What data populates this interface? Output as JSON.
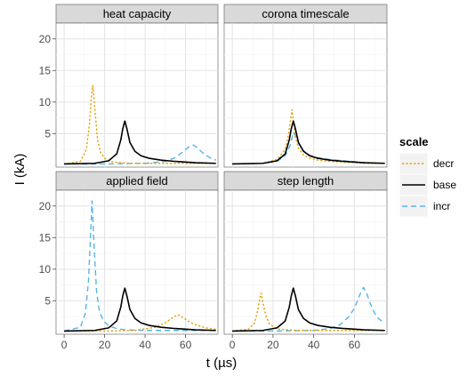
{
  "chart_data": {
    "type": "line",
    "xlabel": "t  (µs)",
    "ylabel": "I (kA)",
    "xlim": [
      -4,
      76
    ],
    "ylim": [
      -0.3,
      22.5
    ],
    "x_ticks": [
      0,
      20,
      40,
      60
    ],
    "y_ticks": [
      5,
      10,
      15,
      20
    ],
    "x_tick_labels": [
      "0",
      "20",
      "40",
      "60"
    ],
    "y_tick_labels": [
      "5",
      "10",
      "15",
      "20"
    ],
    "grid": true,
    "legend": {
      "title": "scale",
      "placement": "right",
      "entries": [
        "decr",
        "base",
        "incr"
      ]
    },
    "series_styles": {
      "decr": {
        "color": "#E69F00",
        "dash": "dotted"
      },
      "base": {
        "color": "#000000",
        "dash": "solid"
      },
      "incr": {
        "color": "#56B4E9",
        "dash": "dashed"
      }
    },
    "panels": [
      {
        "title": "heat capacity",
        "series": [
          {
            "name": "decr",
            "x": [
              0,
              8,
              11,
              12.5,
              13.5,
              14.2,
              15,
              16.5,
              18,
              20,
              23,
              27,
              32,
              40,
              50,
              60,
              70,
              75
            ],
            "y": [
              0.2,
              0.6,
              2.5,
              6.5,
              11.0,
              12.6,
              9.5,
              4.0,
              2.0,
              1.1,
              0.6,
              0.4,
              0.3,
              0.3,
              0.3,
              0.3,
              0.3,
              0.3
            ]
          },
          {
            "name": "base",
            "x": [
              0,
              15,
              22,
              26,
              28,
              29,
              30,
              31,
              32.5,
              35,
              38,
              42,
              48,
              55,
              65,
              75
            ],
            "y": [
              0.2,
              0.3,
              0.7,
              1.8,
              4.0,
              5.8,
              7.0,
              5.8,
              3.6,
              2.2,
              1.5,
              1.1,
              0.8,
              0.6,
              0.4,
              0.3
            ]
          },
          {
            "name": "incr",
            "x": [
              0,
              20,
              40,
              50,
              55,
              59,
              62,
              64,
              66,
              69,
              72,
              75
            ],
            "y": [
              0.2,
              0.2,
              0.3,
              0.6,
              1.2,
              2.2,
              3.0,
              3.2,
              2.7,
              1.8,
              1.2,
              0.8
            ]
          }
        ]
      },
      {
        "title": "corona timescale",
        "series": [
          {
            "name": "decr",
            "x": [
              0,
              15,
              22,
              26,
              27.5,
              28.5,
              29.3,
              30,
              31,
              32.5,
              35,
              38,
              42,
              48,
              55,
              65,
              75
            ],
            "y": [
              0.2,
              0.3,
              0.9,
              2.5,
              4.6,
              6.8,
              8.8,
              7.2,
              4.5,
              2.7,
              1.6,
              1.1,
              0.8,
              0.6,
              0.5,
              0.3,
              0.3
            ]
          },
          {
            "name": "base",
            "x": [
              0,
              15,
              22,
              26,
              28,
              29,
              30,
              31,
              32.5,
              35,
              38,
              42,
              48,
              55,
              65,
              75
            ],
            "y": [
              0.2,
              0.3,
              0.7,
              1.8,
              4.0,
              5.8,
              7.0,
              5.8,
              3.6,
              2.2,
              1.5,
              1.1,
              0.8,
              0.6,
              0.4,
              0.3
            ]
          },
          {
            "name": "incr",
            "x": [
              0,
              15,
              22,
              26,
              28.5,
              30,
              31.5,
              33,
              35,
              38,
              42,
              48,
              55,
              65,
              75
            ],
            "y": [
              0.2,
              0.3,
              0.6,
              1.5,
              3.2,
              5.2,
              4.4,
              3.2,
              2.3,
              1.6,
              1.2,
              0.9,
              0.7,
              0.4,
              0.3
            ]
          }
        ]
      },
      {
        "title": "applied field",
        "series": [
          {
            "name": "decr",
            "x": [
              0,
              20,
              35,
              45,
              50,
              53,
              56,
              59,
              62,
              66,
              70,
              75
            ],
            "y": [
              0.2,
              0.2,
              0.3,
              0.8,
              1.5,
              2.2,
              2.8,
              2.3,
              1.6,
              1.1,
              0.7,
              0.5
            ]
          },
          {
            "name": "base",
            "x": [
              0,
              15,
              22,
              26,
              28,
              29,
              30,
              31,
              32.5,
              35,
              38,
              42,
              48,
              55,
              65,
              75
            ],
            "y": [
              0.2,
              0.3,
              0.7,
              1.8,
              4.0,
              5.8,
              7.0,
              5.8,
              3.6,
              2.2,
              1.5,
              1.1,
              0.8,
              0.6,
              0.4,
              0.3
            ]
          },
          {
            "name": "incr",
            "x": [
              0,
              8,
              10.5,
              12,
              13,
              13.8,
              14.6,
              16,
              17.5,
              19.5,
              22,
              26,
              30,
              40,
              50,
              60,
              75
            ],
            "y": [
              0.2,
              0.8,
              3.0,
              8.0,
              15.0,
              20.8,
              15.0,
              6.5,
              3.2,
              1.8,
              1.0,
              0.6,
              0.4,
              0.3,
              0.3,
              0.3,
              0.3
            ]
          }
        ]
      },
      {
        "title": "step length",
        "series": [
          {
            "name": "decr",
            "x": [
              0,
              8,
              11,
              12.5,
              13.5,
              14.2,
              15,
              16.5,
              18,
              20,
              23,
              27,
              32,
              40,
              55,
              75
            ],
            "y": [
              0.2,
              0.5,
              1.5,
              3.5,
              5.4,
              6.2,
              4.8,
              2.6,
              1.5,
              0.9,
              0.5,
              0.4,
              0.3,
              0.3,
              0.3,
              0.3
            ]
          },
          {
            "name": "base",
            "x": [
              0,
              15,
              22,
              26,
              28,
              29,
              30,
              31,
              32.5,
              35,
              38,
              42,
              48,
              55,
              65,
              75
            ],
            "y": [
              0.2,
              0.3,
              0.7,
              1.8,
              4.0,
              5.8,
              7.0,
              5.8,
              3.6,
              2.2,
              1.5,
              1.1,
              0.8,
              0.6,
              0.4,
              0.3
            ]
          },
          {
            "name": "incr",
            "x": [
              0,
              20,
              40,
              48,
              53,
              57,
              60,
              62,
              63.5,
              64.5,
              66,
              68,
              70,
              72,
              75
            ],
            "y": [
              0.2,
              0.2,
              0.3,
              0.6,
              1.2,
              2.4,
              3.8,
              5.4,
              6.6,
              7.1,
              6.2,
              4.4,
              3.0,
              2.1,
              1.5
            ]
          }
        ]
      }
    ]
  }
}
